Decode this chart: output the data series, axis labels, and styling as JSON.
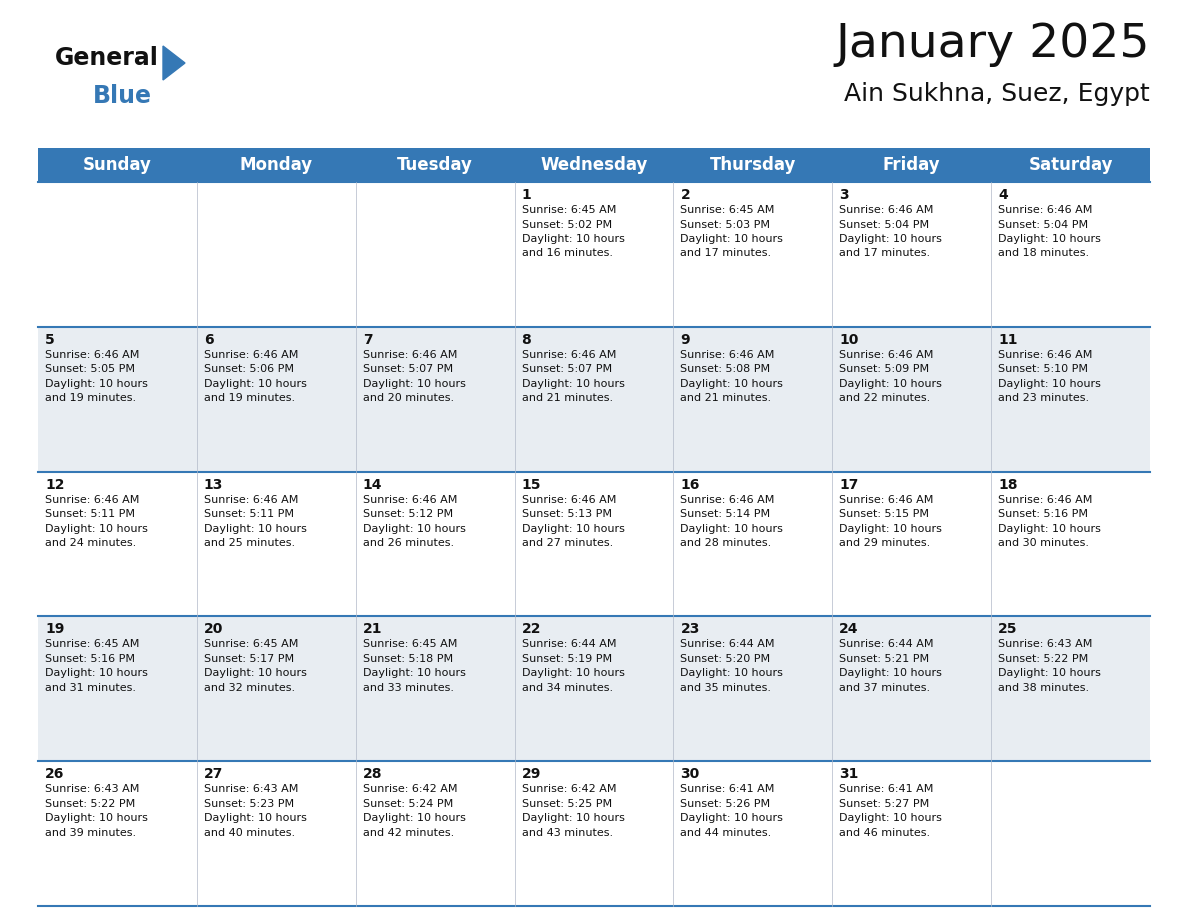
{
  "title": "January 2025",
  "subtitle": "Ain Sukhna, Suez, Egypt",
  "header_color": "#3578b5",
  "header_text_color": "#ffffff",
  "bg_color": "#ffffff",
  "alt_row_color": "#e8edf2",
  "day_names": [
    "Sunday",
    "Monday",
    "Tuesday",
    "Wednesday",
    "Thursday",
    "Friday",
    "Saturday"
  ],
  "title_fontsize": 34,
  "subtitle_fontsize": 18,
  "header_fontsize": 12,
  "cell_fontsize": 8.0,
  "day_num_fontsize": 10,
  "weeks": [
    [
      {
        "day": "",
        "sunrise": "",
        "sunset": "",
        "daylight": ""
      },
      {
        "day": "",
        "sunrise": "",
        "sunset": "",
        "daylight": ""
      },
      {
        "day": "",
        "sunrise": "",
        "sunset": "",
        "daylight": ""
      },
      {
        "day": "1",
        "sunrise": "6:45 AM",
        "sunset": "5:02 PM",
        "daylight": "10 hours and 16 minutes."
      },
      {
        "day": "2",
        "sunrise": "6:45 AM",
        "sunset": "5:03 PM",
        "daylight": "10 hours and 17 minutes."
      },
      {
        "day": "3",
        "sunrise": "6:46 AM",
        "sunset": "5:04 PM",
        "daylight": "10 hours and 17 minutes."
      },
      {
        "day": "4",
        "sunrise": "6:46 AM",
        "sunset": "5:04 PM",
        "daylight": "10 hours and 18 minutes."
      }
    ],
    [
      {
        "day": "5",
        "sunrise": "6:46 AM",
        "sunset": "5:05 PM",
        "daylight": "10 hours and 19 minutes."
      },
      {
        "day": "6",
        "sunrise": "6:46 AM",
        "sunset": "5:06 PM",
        "daylight": "10 hours and 19 minutes."
      },
      {
        "day": "7",
        "sunrise": "6:46 AM",
        "sunset": "5:07 PM",
        "daylight": "10 hours and 20 minutes."
      },
      {
        "day": "8",
        "sunrise": "6:46 AM",
        "sunset": "5:07 PM",
        "daylight": "10 hours and 21 minutes."
      },
      {
        "day": "9",
        "sunrise": "6:46 AM",
        "sunset": "5:08 PM",
        "daylight": "10 hours and 21 minutes."
      },
      {
        "day": "10",
        "sunrise": "6:46 AM",
        "sunset": "5:09 PM",
        "daylight": "10 hours and 22 minutes."
      },
      {
        "day": "11",
        "sunrise": "6:46 AM",
        "sunset": "5:10 PM",
        "daylight": "10 hours and 23 minutes."
      }
    ],
    [
      {
        "day": "12",
        "sunrise": "6:46 AM",
        "sunset": "5:11 PM",
        "daylight": "10 hours and 24 minutes."
      },
      {
        "day": "13",
        "sunrise": "6:46 AM",
        "sunset": "5:11 PM",
        "daylight": "10 hours and 25 minutes."
      },
      {
        "day": "14",
        "sunrise": "6:46 AM",
        "sunset": "5:12 PM",
        "daylight": "10 hours and 26 minutes."
      },
      {
        "day": "15",
        "sunrise": "6:46 AM",
        "sunset": "5:13 PM",
        "daylight": "10 hours and 27 minutes."
      },
      {
        "day": "16",
        "sunrise": "6:46 AM",
        "sunset": "5:14 PM",
        "daylight": "10 hours and 28 minutes."
      },
      {
        "day": "17",
        "sunrise": "6:46 AM",
        "sunset": "5:15 PM",
        "daylight": "10 hours and 29 minutes."
      },
      {
        "day": "18",
        "sunrise": "6:46 AM",
        "sunset": "5:16 PM",
        "daylight": "10 hours and 30 minutes."
      }
    ],
    [
      {
        "day": "19",
        "sunrise": "6:45 AM",
        "sunset": "5:16 PM",
        "daylight": "10 hours and 31 minutes."
      },
      {
        "day": "20",
        "sunrise": "6:45 AM",
        "sunset": "5:17 PM",
        "daylight": "10 hours and 32 minutes."
      },
      {
        "day": "21",
        "sunrise": "6:45 AM",
        "sunset": "5:18 PM",
        "daylight": "10 hours and 33 minutes."
      },
      {
        "day": "22",
        "sunrise": "6:44 AM",
        "sunset": "5:19 PM",
        "daylight": "10 hours and 34 minutes."
      },
      {
        "day": "23",
        "sunrise": "6:44 AM",
        "sunset": "5:20 PM",
        "daylight": "10 hours and 35 minutes."
      },
      {
        "day": "24",
        "sunrise": "6:44 AM",
        "sunset": "5:21 PM",
        "daylight": "10 hours and 37 minutes."
      },
      {
        "day": "25",
        "sunrise": "6:43 AM",
        "sunset": "5:22 PM",
        "daylight": "10 hours and 38 minutes."
      }
    ],
    [
      {
        "day": "26",
        "sunrise": "6:43 AM",
        "sunset": "5:22 PM",
        "daylight": "10 hours and 39 minutes."
      },
      {
        "day": "27",
        "sunrise": "6:43 AM",
        "sunset": "5:23 PM",
        "daylight": "10 hours and 40 minutes."
      },
      {
        "day": "28",
        "sunrise": "6:42 AM",
        "sunset": "5:24 PM",
        "daylight": "10 hours and 42 minutes."
      },
      {
        "day": "29",
        "sunrise": "6:42 AM",
        "sunset": "5:25 PM",
        "daylight": "10 hours and 43 minutes."
      },
      {
        "day": "30",
        "sunrise": "6:41 AM",
        "sunset": "5:26 PM",
        "daylight": "10 hours and 44 minutes."
      },
      {
        "day": "31",
        "sunrise": "6:41 AM",
        "sunset": "5:27 PM",
        "daylight": "10 hours and 46 minutes."
      },
      {
        "day": "",
        "sunrise": "",
        "sunset": "",
        "daylight": ""
      }
    ]
  ],
  "logo_color_general": "#111111",
  "logo_color_blue": "#3578b5",
  "logo_triangle_color": "#3578b5",
  "line_color": "#3578b5",
  "text_color": "#111111",
  "cell_text_color": "#111111"
}
